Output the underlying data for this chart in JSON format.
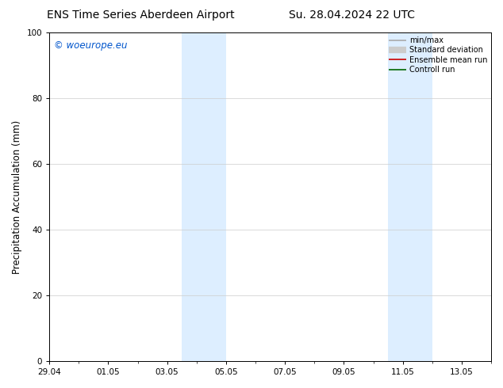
{
  "title_left": "ENS Time Series Aberdeen Airport",
  "title_right": "Su. 28.04.2024 22 UTC",
  "ylabel": "Precipitation Accumulation (mm)",
  "ylim": [
    0,
    100
  ],
  "yticks": [
    0,
    20,
    40,
    60,
    80,
    100
  ],
  "xlim": [
    0,
    15.0
  ],
  "xtick_labels": [
    "29.04",
    "01.05",
    "03.05",
    "05.05",
    "07.05",
    "09.05",
    "11.05",
    "13.05"
  ],
  "xtick_positions_days": [
    0,
    2,
    4,
    6,
    8,
    10,
    12,
    14
  ],
  "shaded_bands": [
    {
      "start_day": 4.5,
      "end_day": 6.0
    },
    {
      "start_day": 11.5,
      "end_day": 13.0
    }
  ],
  "shaded_color": "#ddeeff",
  "copyright_text": "© woeurope.eu",
  "copyright_color": "#0055cc",
  "legend_entries": [
    {
      "label": "min/max",
      "color": "#aaaaaa",
      "lw": 1.2
    },
    {
      "label": "Standard deviation",
      "color": "#cccccc",
      "lw": 6
    },
    {
      "label": "Ensemble mean run",
      "color": "#cc0000",
      "lw": 1.2
    },
    {
      "label": "Controll run",
      "color": "#006600",
      "lw": 1.2
    }
  ],
  "bg_color": "#ffffff",
  "title_fontsize": 10,
  "tick_label_fontsize": 7.5,
  "ylabel_fontsize": 8.5,
  "legend_fontsize": 7
}
